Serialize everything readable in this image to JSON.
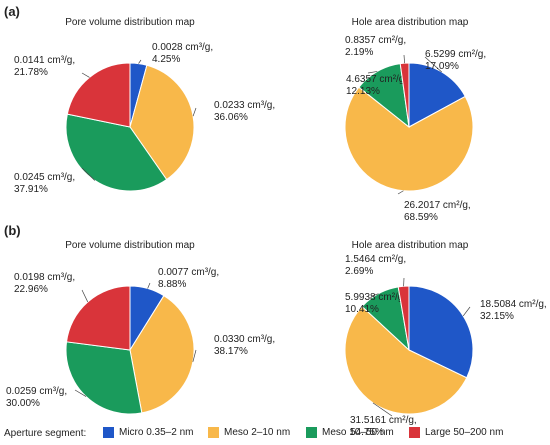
{
  "panels": [
    {
      "label": "(a)"
    },
    {
      "label": "(b)"
    }
  ],
  "legend": {
    "title": "Aperture segment:",
    "items": [
      {
        "label": "Micro 0.35–2 nm",
        "color": "#1f57c8"
      },
      {
        "label": "Meso 2–10 nm",
        "color": "#f8b84a"
      },
      {
        "label": "Meso 10–50 nm",
        "color": "#1a9b5c"
      },
      {
        "label": "Large 50–200 nm",
        "color": "#d9343a"
      }
    ]
  },
  "chart_data": [
    {
      "type": "pie",
      "title": "Pore volume distribution map",
      "categories": [
        "Micro 0.35–2 nm",
        "Meso 2–10 nm",
        "Meso 10–50 nm",
        "Large 50–200 nm"
      ],
      "values": [
        4.25,
        36.06,
        37.91,
        21.78
      ],
      "labels": [
        [
          "0.0028 cm³/g,",
          "4.25%"
        ],
        [
          "0.0233 cm³/g,",
          "36.06%"
        ],
        [
          "0.0245 cm³/g,",
          "37.91%"
        ],
        [
          "0.0141 cm³/g,",
          "21.78%"
        ]
      ]
    },
    {
      "type": "pie",
      "title": "Hole area distribution map",
      "categories": [
        "Micro 0.35–2 nm",
        "Meso 2–10 nm",
        "Meso 10–50 nm",
        "Large 50–200 nm"
      ],
      "values": [
        17.09,
        68.59,
        12.13,
        2.19
      ],
      "labels": [
        [
          "6.5299 cm²/g,",
          "17.09%"
        ],
        [
          "26.2017 cm²/g,",
          "68.59%"
        ],
        [
          "4.6357 cm²/g,",
          "12.13%"
        ],
        [
          "0.8357 cm²/g,",
          "2.19%"
        ]
      ]
    },
    {
      "type": "pie",
      "title": "Pore volume distribution map",
      "categories": [
        "Micro 0.35–2 nm",
        "Meso 2–10 nm",
        "Meso 10–50 nm",
        "Large 50–200 nm"
      ],
      "values": [
        8.88,
        38.17,
        30.0,
        22.96
      ],
      "labels": [
        [
          "0.0077 cm³/g,",
          "8.88%"
        ],
        [
          "0.0330 cm³/g,",
          "38.17%"
        ],
        [
          "0.0259 cm³/g,",
          "30.00%"
        ],
        [
          "0.0198 cm³/g,",
          "22.96%"
        ]
      ]
    },
    {
      "type": "pie",
      "title": "Hole area distribution map",
      "categories": [
        "Micro 0.35–2 nm",
        "Meso 2–10 nm",
        "Meso 10–50 nm",
        "Large 50–200 nm"
      ],
      "values": [
        32.15,
        54.75,
        10.41,
        2.69
      ],
      "labels": [
        [
          "18.5084 cm²/g,",
          "32.15%"
        ],
        [
          "31.5161 cm²/g,",
          "54.75%"
        ],
        [
          "5.9938 cm²/g,",
          "10.41%"
        ],
        [
          "1.5464 cm²/g,",
          "2.69%"
        ]
      ]
    }
  ]
}
